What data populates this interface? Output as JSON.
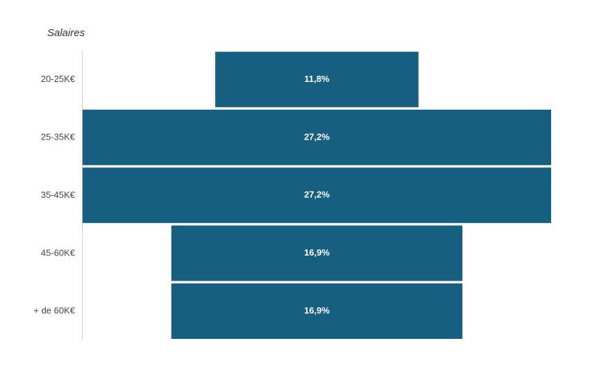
{
  "chart_data": {
    "type": "funnel",
    "title": "Salaires",
    "categories": [
      "20-25K€",
      "25-35K€",
      "35-45K€",
      "45-60K€",
      "+ de 60K€"
    ],
    "values": [
      11.8,
      27.2,
      27.2,
      16.9,
      16.9
    ],
    "value_labels": [
      "11,8%",
      "27,2%",
      "27,2%",
      "16,9%",
      "16,9%"
    ],
    "color": "#175f80"
  }
}
